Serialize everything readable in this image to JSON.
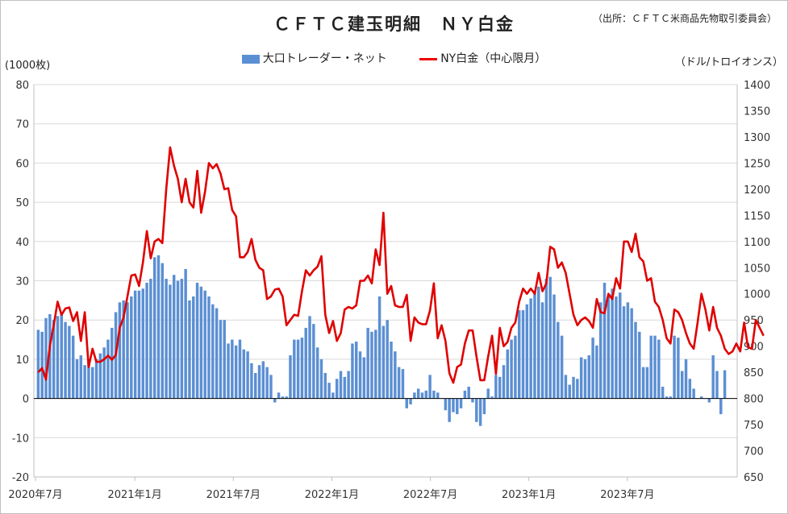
{
  "title": "ＣＦＴＣ建玉明細　ＮＹ白金",
  "source": "（出所：ＣＦＴＣ米商品先物取引委員会）",
  "unit_left": "(1000枚)",
  "unit_right": "（ドル/トロイオンス）",
  "legend": {
    "bar_label": "大口トレーダー・ネット",
    "line_label": "NY白金（中心限月）"
  },
  "colors": {
    "bar": "#5b8fd3",
    "line": "#e00000",
    "grid": "#d9d9d9"
  },
  "chart_data": {
    "type": "bar",
    "x_tick_labels": [
      "2020年7月",
      "2021年1月",
      "2021年7月",
      "2022年1月",
      "2022年7月",
      "2023年1月",
      "2023年7月"
    ],
    "y_left": {
      "min": -20,
      "max": 80,
      "ticks": [
        80,
        70,
        60,
        50,
        40,
        30,
        20,
        10,
        0,
        -10,
        -20
      ]
    },
    "y_right": {
      "min": 650,
      "max": 1400,
      "ticks": [
        1400,
        1350,
        1300,
        1250,
        1200,
        1150,
        1100,
        1050,
        1000,
        950,
        900,
        850,
        800,
        750,
        700,
        650
      ]
    },
    "grid": true,
    "series": [
      {
        "name": "大口トレーダー・ネット",
        "type": "bar",
        "axis": "left",
        "values": [
          17.5,
          17,
          20.5,
          21.5,
          20,
          21,
          22,
          19.5,
          18.5,
          16,
          10,
          11,
          8.5,
          9.5,
          8,
          10,
          11.5,
          13,
          15,
          18,
          22,
          24.5,
          25,
          24.5,
          26,
          27.5,
          27.5,
          28,
          29.5,
          30.5,
          36,
          36.5,
          34.5,
          30.5,
          29,
          31.5,
          30,
          30.5,
          33,
          25,
          26,
          29.5,
          28.5,
          27.5,
          26,
          24,
          23,
          20,
          20,
          14,
          15,
          13.5,
          15,
          12.5,
          12,
          9,
          6.5,
          8.5,
          9.5,
          8,
          6,
          -1,
          1.5,
          0.5,
          0.5,
          11,
          15,
          15,
          15.5,
          18,
          21,
          19,
          13,
          10,
          6.5,
          4,
          1.5,
          5,
          7,
          5.5,
          7,
          14,
          14.5,
          12,
          10.5,
          18,
          17,
          17.5,
          26,
          18.5,
          20,
          14.5,
          12,
          8,
          7.5,
          -2.5,
          -1.5,
          1.5,
          2.5,
          1.5,
          2,
          6,
          2,
          1.5,
          0,
          -3,
          -6,
          -3.5,
          -4,
          -2.5,
          2,
          3,
          -1,
          -6,
          -7,
          -4,
          2.5,
          0.5,
          6,
          5.5,
          8.5,
          12.5,
          15,
          16,
          22.5,
          22.5,
          24,
          25.5,
          27.5,
          28.5,
          24.5,
          30.5,
          31,
          26.5,
          19.5,
          16,
          6,
          3.5,
          5.5,
          5,
          10.5,
          10,
          11,
          15.5,
          13.5,
          24.5,
          29.5,
          26,
          28,
          26,
          27,
          23.5,
          24.5,
          23,
          19.5,
          17,
          8,
          8,
          16,
          16,
          15,
          3,
          0.5,
          0.5,
          16,
          15.5,
          7,
          10,
          5,
          2.5,
          0,
          0.5,
          0,
          -1,
          11,
          7,
          -4,
          7.2
        ]
      },
      {
        "name": "NY白金（中心限月）",
        "type": "line",
        "axis": "right",
        "values": [
          850,
          858,
          836,
          900,
          940,
          985,
          960,
          972,
          974,
          948,
          965,
          910,
          965,
          860,
          895,
          870,
          870,
          875,
          882,
          874,
          883,
          935,
          955,
          995,
          1035,
          1037,
          1015,
          1060,
          1120,
          1068,
          1100,
          1105,
          1097,
          1200,
          1280,
          1245,
          1220,
          1175,
          1220,
          1175,
          1165,
          1235,
          1155,
          1195,
          1250,
          1240,
          1248,
          1230,
          1200,
          1202,
          1160,
          1148,
          1070,
          1070,
          1080,
          1105,
          1065,
          1050,
          1045,
          990,
          995,
          1008,
          1010,
          995,
          940,
          950,
          960,
          958,
          1005,
          1045,
          1035,
          1045,
          1052,
          1072,
          960,
          925,
          948,
          910,
          925,
          970,
          975,
          972,
          978,
          1025,
          1025,
          1035,
          1020,
          1085,
          1055,
          1155,
          1000,
          1015,
          978,
          975,
          975,
          998,
          910,
          955,
          945,
          942,
          942,
          968,
          1020,
          915,
          940,
          910,
          848,
          830,
          860,
          865,
          905,
          930,
          930,
          880,
          835,
          835,
          880,
          920,
          847,
          935,
          900,
          908,
          935,
          945,
          985,
          1010,
          1000,
          1010,
          1000,
          1040,
          1005,
          1020,
          1090,
          1085,
          1050,
          1060,
          1040,
          1000,
          960,
          940,
          950,
          955,
          948,
          935,
          990,
          965,
          963,
          1000,
          990,
          1030,
          1010,
          1100,
          1100,
          1080,
          1115,
          1070,
          1062,
          1025,
          1030,
          985,
          975,
          950,
          915,
          905,
          970,
          965,
          950,
          925,
          905,
          895,
          945,
          1000,
          970,
          930,
          975,
          935,
          920,
          895,
          885,
          890,
          905,
          890,
          945,
          898,
          895,
          950,
          935,
          920
        ]
      }
    ]
  }
}
